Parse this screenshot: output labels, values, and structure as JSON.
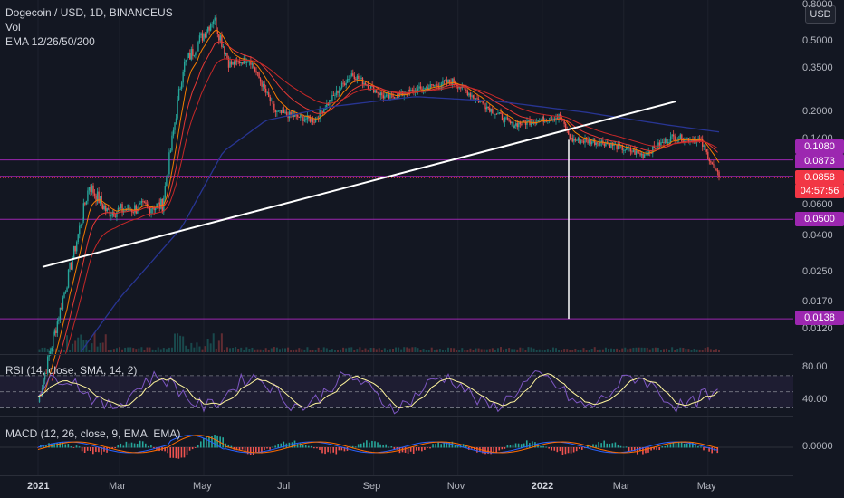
{
  "header": {
    "title": "Dogecoin / USD, 1D, BINANCEUS",
    "vol_label": "Vol",
    "ema_label": "EMA 12/26/50/200"
  },
  "rsi_label": "RSI (14, close, SMA, 14, 2)",
  "macd_label": "MACD (12, 26, close, 9, EMA, EMA)",
  "currency": "USD",
  "price_tags": {
    "level_1080": "0.1080",
    "level_0873": "0.0873",
    "last_price": "0.0858",
    "countdown": "04:57:56",
    "level_0500": "0.0500",
    "level_0138": "0.0138"
  },
  "colors": {
    "background": "#131722",
    "level_line": "#9c27b0",
    "last_price": "#f23645",
    "trendline": "#ffffff",
    "ema12": "#f57c00",
    "ema26": "#e53935",
    "ema200": "#283593",
    "rsi": "#7e57c2",
    "rsi_ma": "#fff59d",
    "macd": "#2962ff",
    "signal": "#ff6d00",
    "hist_up": "#26a69a",
    "hist_down": "#ef5350"
  },
  "chart_data": {
    "type": "candlestick",
    "price_scale": "log",
    "y_ticks": [
      "0.8000",
      "0.5000",
      "0.3500",
      "0.2000",
      "0.1400",
      "0.0600",
      "0.0400",
      "0.0250",
      "0.0170",
      "0.0120"
    ],
    "x_ticks": [
      "2021",
      "Mar",
      "May",
      "Jul",
      "Sep",
      "Nov",
      "2022",
      "Mar",
      "May"
    ],
    "horizontal_levels": [
      0.108,
      0.0873,
      0.05,
      0.0138
    ],
    "last_price": 0.0858,
    "price_path": [
      {
        "date": "2021-01-01",
        "close": 0.0047
      },
      {
        "date": "2021-01-28",
        "close": 0.035
      },
      {
        "date": "2021-02-07",
        "close": 0.078
      },
      {
        "date": "2021-02-20",
        "close": 0.055
      },
      {
        "date": "2021-03-15",
        "close": 0.058
      },
      {
        "date": "2021-04-01",
        "close": 0.06
      },
      {
        "date": "2021-04-16",
        "close": 0.36
      },
      {
        "date": "2021-05-08",
        "close": 0.68
      },
      {
        "date": "2021-05-20",
        "close": 0.37
      },
      {
        "date": "2021-06-03",
        "close": 0.4
      },
      {
        "date": "2021-06-22",
        "close": 0.2
      },
      {
        "date": "2021-07-20",
        "close": 0.18
      },
      {
        "date": "2021-08-16",
        "close": 0.33
      },
      {
        "date": "2021-09-10",
        "close": 0.24
      },
      {
        "date": "2021-10-28",
        "close": 0.3
      },
      {
        "date": "2021-12-10",
        "close": 0.17
      },
      {
        "date": "2022-01-14",
        "close": 0.19
      },
      {
        "date": "2022-01-22",
        "close": 0.14
      },
      {
        "date": "2022-02-15",
        "close": 0.135
      },
      {
        "date": "2022-03-15",
        "close": 0.115
      },
      {
        "date": "2022-04-05",
        "close": 0.145
      },
      {
        "date": "2022-04-25",
        "close": 0.14
      },
      {
        "date": "2022-05-09",
        "close": 0.0858
      }
    ],
    "ema200_path": [
      {
        "date": "2021-02-01",
        "value": 0.009
      },
      {
        "date": "2021-03-01",
        "value": 0.018
      },
      {
        "date": "2021-04-15",
        "value": 0.045
      },
      {
        "date": "2021-05-15",
        "value": 0.12
      },
      {
        "date": "2021-06-15",
        "value": 0.18
      },
      {
        "date": "2021-08-01",
        "value": 0.215
      },
      {
        "date": "2021-10-01",
        "value": 0.245
      },
      {
        "date": "2021-12-01",
        "value": 0.23
      },
      {
        "date": "2022-02-01",
        "value": 0.2
      },
      {
        "date": "2022-04-01",
        "value": 0.17
      },
      {
        "date": "2022-05-09",
        "value": 0.155
      }
    ],
    "trendline": {
      "from": {
        "date": "2021-01-01",
        "value": 0.027
      },
      "to": {
        "date": "2022-04-01",
        "value": 0.23
      }
    },
    "rsi_ticks": [
      "80.00",
      "40.00"
    ],
    "macd_ticks": [
      "0.0000"
    ]
  }
}
